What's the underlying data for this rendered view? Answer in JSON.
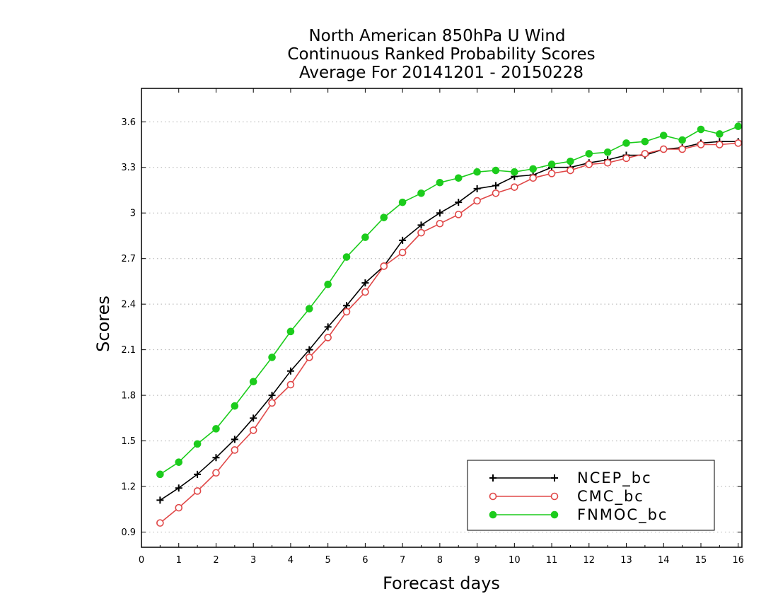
{
  "chart_data": {
    "type": "line",
    "title": [
      "North American 850hPa U Wind",
      "Continuous Ranked Probability Scores",
      "Average For 20141201 - 20150228"
    ],
    "xlabel": "Forecast days",
    "ylabel": "Scores",
    "xlim": [
      0,
      16.1
    ],
    "ylim": [
      0.8,
      3.82
    ],
    "xticks": [
      0,
      1,
      2,
      3,
      4,
      5,
      6,
      7,
      8,
      9,
      10,
      11,
      12,
      13,
      14,
      15,
      16
    ],
    "xtick_labels": [
      "0",
      "1",
      "2",
      "3",
      "4",
      "5",
      "6",
      "7",
      "8",
      "9",
      "10",
      "11",
      "12",
      "13",
      "14",
      "15",
      "16"
    ],
    "yticks": [
      0.9,
      1.2,
      1.5,
      1.8,
      2.1,
      2.4,
      2.7,
      3.0,
      3.3,
      3.6
    ],
    "ytick_labels": [
      "0.9",
      "1.2",
      "1.5",
      "1.8",
      "2.1",
      "2.4",
      "2.7",
      "3",
      "3.3",
      "3.6"
    ],
    "grid": "horizontal dotted",
    "legend_position": "bottom-right",
    "x": [
      0.5,
      1,
      1.5,
      2,
      2.5,
      3,
      3.5,
      4,
      4.5,
      5,
      5.5,
      6,
      6.5,
      7,
      7.5,
      8,
      8.5,
      9,
      9.5,
      10,
      10.5,
      11,
      11.5,
      12,
      12.5,
      13,
      13.5,
      14,
      14.5,
      15,
      15.5,
      16
    ],
    "series": [
      {
        "name": "NCEP_bc",
        "color": "#000000",
        "marker": "plus",
        "values": [
          1.11,
          1.19,
          1.28,
          1.39,
          1.51,
          1.65,
          1.8,
          1.96,
          2.1,
          2.25,
          2.39,
          2.54,
          2.65,
          2.82,
          2.92,
          3.0,
          3.07,
          3.16,
          3.18,
          3.24,
          3.25,
          3.3,
          3.3,
          3.33,
          3.35,
          3.38,
          3.38,
          3.42,
          3.43,
          3.46,
          3.47,
          3.47
        ]
      },
      {
        "name": "CMC_bc",
        "color": "#e04848",
        "marker": "open-circle",
        "values": [
          0.96,
          1.06,
          1.17,
          1.29,
          1.44,
          1.57,
          1.75,
          1.87,
          2.05,
          2.18,
          2.35,
          2.48,
          2.65,
          2.74,
          2.87,
          2.93,
          2.99,
          3.08,
          3.13,
          3.17,
          3.23,
          3.26,
          3.28,
          3.32,
          3.33,
          3.36,
          3.39,
          3.42,
          3.42,
          3.45,
          3.45,
          3.46
        ]
      },
      {
        "name": "FNMOC_bc",
        "color": "#1ccc1c",
        "marker": "filled-circle",
        "values": [
          1.28,
          1.36,
          1.48,
          1.58,
          1.73,
          1.89,
          2.05,
          2.22,
          2.37,
          2.53,
          2.71,
          2.84,
          2.97,
          3.07,
          3.13,
          3.2,
          3.23,
          3.27,
          3.28,
          3.27,
          3.29,
          3.32,
          3.34,
          3.39,
          3.4,
          3.46,
          3.47,
          3.51,
          3.48,
          3.55,
          3.52,
          3.57
        ]
      }
    ]
  }
}
